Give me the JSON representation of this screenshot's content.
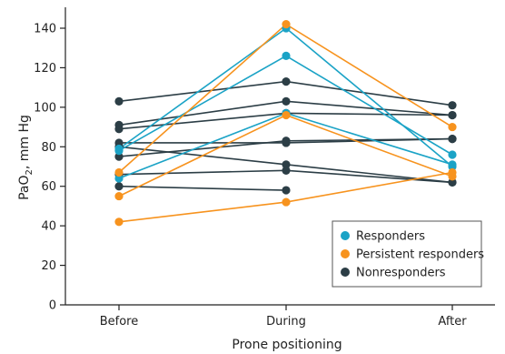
{
  "chart_data": {
    "type": "line",
    "title": "",
    "xlabel": "Prone positioning",
    "ylabel": "PaO",
    "ylabel_subscript": "2",
    "ylabel_suffix": ", mm Hg",
    "x": [
      "Before",
      "During",
      "After"
    ],
    "ylim": [
      0,
      150
    ],
    "yticks": [
      0,
      20,
      40,
      60,
      80,
      100,
      120,
      140
    ],
    "ytick_labels": [
      "0",
      "20",
      "40",
      "60",
      "80",
      "100",
      "120",
      "140"
    ],
    "grid": false,
    "legend_position": "bottom-right",
    "groups": [
      {
        "name": "Responders",
        "color": "#1ba3c6"
      },
      {
        "name": "Persistent responders",
        "color": "#f7931e"
      },
      {
        "name": "Nonresponders",
        "color": "#2c3e46"
      }
    ],
    "series": [
      {
        "group": 2,
        "values": [
          103,
          113,
          101
        ]
      },
      {
        "group": 2,
        "values": [
          91,
          103,
          96
        ]
      },
      {
        "group": 2,
        "values": [
          89,
          97,
          96
        ]
      },
      {
        "group": 2,
        "values": [
          82,
          82,
          84
        ]
      },
      {
        "group": 2,
        "values": [
          80,
          71,
          62
        ]
      },
      {
        "group": 2,
        "values": [
          75,
          83,
          84
        ]
      },
      {
        "group": 2,
        "values": [
          66,
          68,
          62
        ]
      },
      {
        "group": 2,
        "values": [
          60,
          58,
          null
        ]
      },
      {
        "group": 0,
        "values": [
          79,
          140,
          70
        ]
      },
      {
        "group": 0,
        "values": [
          78,
          126,
          76
        ]
      },
      {
        "group": 0,
        "values": [
          64,
          97,
          71
        ]
      },
      {
        "group": 1,
        "values": [
          67,
          142,
          90
        ]
      },
      {
        "group": 1,
        "values": [
          55,
          96,
          65
        ]
      },
      {
        "group": 1,
        "values": [
          42,
          52,
          67
        ]
      }
    ]
  }
}
